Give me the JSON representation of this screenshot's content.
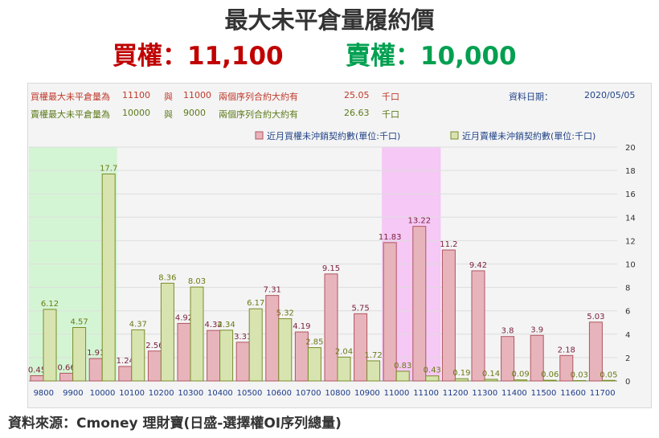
{
  "header": {
    "title": "最大未平倉量履約價",
    "call_line": "買權：11,100",
    "put_line": "賣權：10,000"
  },
  "info": {
    "call": {
      "label": "買權最大未平倉量為",
      "strike1": "11100",
      "conj": "與",
      "strike2": "11000",
      "desc": "兩個序列合約大約有",
      "value": "25.05",
      "unit": "千口"
    },
    "put": {
      "label": "賣權最大未平倉量為",
      "strike1": "10000",
      "conj": "與",
      "strike2": "9000",
      "desc": "兩個序列合約大約有",
      "value": "26.63",
      "unit": "千口"
    },
    "date_label": "資料日期：",
    "date_value": "2020/05/05"
  },
  "footer": {
    "source": "資料來源：Cmoney 理財寶(日盛-選擇權OI序列總量)"
  },
  "chart_data": {
    "type": "bar",
    "categories": [
      "9800",
      "9900",
      "10000",
      "10100",
      "10200",
      "10300",
      "10400",
      "10500",
      "10600",
      "10700",
      "10800",
      "10900",
      "11000",
      "11100",
      "11200",
      "11300",
      "11400",
      "11500",
      "11600",
      "11700"
    ],
    "series": [
      {
        "name": "近月買權未沖銷契約數(單位:千口)",
        "color": "#e8b4bc",
        "stroke": "#b05560",
        "label_color": "#7a1f3a",
        "values": [
          0.45,
          0.66,
          1.91,
          1.24,
          2.56,
          4.92,
          4.32,
          3.31,
          7.31,
          4.19,
          9.15,
          5.75,
          11.83,
          13.22,
          11.2,
          9.42,
          3.8,
          3.9,
          2.18,
          5.03
        ]
      },
      {
        "name": "近月賣權未沖銷契約數(單位:千口)",
        "color": "#d8e4b0",
        "stroke": "#7a8c2a",
        "label_color": "#6b7a14",
        "values": [
          6.12,
          4.57,
          17.7,
          4.37,
          8.36,
          8.03,
          4.34,
          6.17,
          5.32,
          2.85,
          2.04,
          1.72,
          0.83,
          0.43,
          0.19,
          0.14,
          0.09,
          0.06,
          0.03,
          0.05
        ]
      }
    ],
    "ylim": [
      0,
      20
    ],
    "yticks": [
      "0",
      "2",
      "4",
      "6",
      "8",
      "10",
      "12",
      "14",
      "16",
      "18",
      "20"
    ],
    "highlights": [
      {
        "from": "9800",
        "to": "10000",
        "color": "#d4f5d4"
      },
      {
        "from": "11000",
        "to": "11100",
        "color": "#f5c8f5"
      }
    ],
    "legend_position": "top-right"
  }
}
